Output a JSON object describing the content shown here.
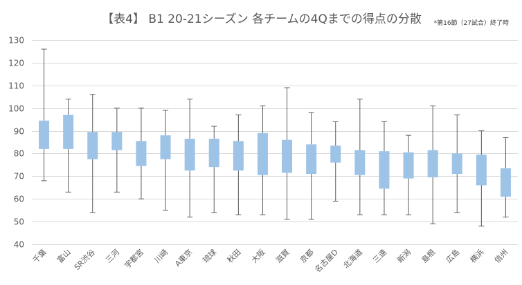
{
  "chart_data": {
    "type": "box",
    "title": "【表4】 B1 20-21シーズン 各チームの4Qまでの得点の分散",
    "note": "*第16節（27試合）終了時",
    "ylim": [
      40,
      130
    ],
    "yticks": [
      40,
      50,
      60,
      70,
      80,
      90,
      100,
      110,
      120,
      130
    ],
    "grid": true,
    "categories": [
      "千葉",
      "富山",
      "SR渋谷",
      "三河",
      "宇都宮",
      "川崎",
      "A東京",
      "琉球",
      "秋田",
      "大阪",
      "滋賀",
      "京都",
      "名古屋D",
      "北海道",
      "三遠",
      "新潟",
      "島根",
      "広島",
      "横浜",
      "信州"
    ],
    "series": [
      {
        "boxes": [
          {
            "min": 68,
            "q1": 82,
            "q3": 94.5,
            "max": 126
          },
          {
            "min": 63,
            "q1": 82,
            "q3": 97,
            "max": 104
          },
          {
            "min": 54,
            "q1": 77.5,
            "q3": 89.5,
            "max": 106
          },
          {
            "min": 63,
            "q1": 81.5,
            "q3": 89.5,
            "max": 100
          },
          {
            "min": 60,
            "q1": 74.5,
            "q3": 85.5,
            "max": 100
          },
          {
            "min": 55,
            "q1": 77.5,
            "q3": 88,
            "max": 99
          },
          {
            "min": 52,
            "q1": 72.5,
            "q3": 86.5,
            "max": 104
          },
          {
            "min": 54,
            "q1": 74,
            "q3": 86.5,
            "max": 92
          },
          {
            "min": 53,
            "q1": 72.5,
            "q3": 85.5,
            "max": 97
          },
          {
            "min": 53,
            "q1": 70.5,
            "q3": 89,
            "max": 101
          },
          {
            "min": 51,
            "q1": 71.5,
            "q3": 86,
            "max": 109
          },
          {
            "min": 51,
            "q1": 71,
            "q3": 84,
            "max": 98
          },
          {
            "min": 59,
            "q1": 76,
            "q3": 83.5,
            "max": 94
          },
          {
            "min": 53,
            "q1": 70.5,
            "q3": 81.5,
            "max": 104
          },
          {
            "min": 53,
            "q1": 64.5,
            "q3": 81,
            "max": 94
          },
          {
            "min": 53,
            "q1": 69,
            "q3": 80.5,
            "max": 88
          },
          {
            "min": 49,
            "q1": 69.5,
            "q3": 81.5,
            "max": 101
          },
          {
            "min": 54,
            "q1": 71,
            "q3": 80,
            "max": 97
          },
          {
            "min": 48,
            "q1": 66,
            "q3": 79.5,
            "max": 90
          },
          {
            "min": 52,
            "q1": 61,
            "q3": 73.5,
            "max": 87
          }
        ]
      }
    ],
    "colors": {
      "box": "#9dc3e6",
      "whisker": "#595959",
      "grid": "#d9d9d9",
      "text": "#595959"
    }
  }
}
